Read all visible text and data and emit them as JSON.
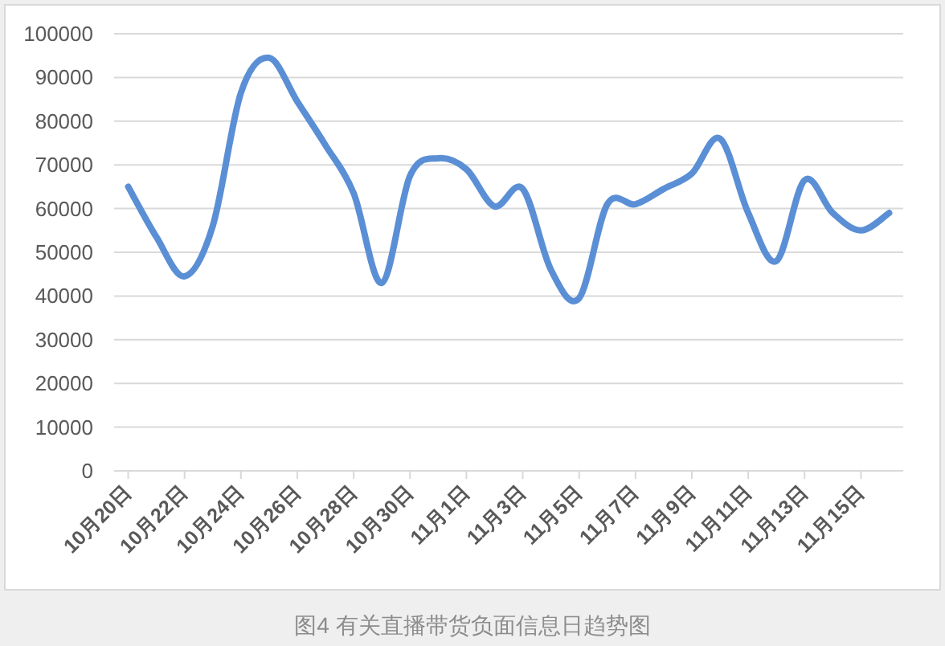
{
  "chart_data": {
    "type": "line",
    "categories": [
      "10月20日",
      null,
      "10月22日",
      null,
      "10月24日",
      null,
      "10月26日",
      null,
      "10月28日",
      null,
      "10月30日",
      null,
      "11月1日",
      null,
      "11月3日",
      null,
      "11月5日",
      null,
      "11月7日",
      null,
      "11月9日",
      null,
      "11月11日",
      null,
      "11月13日",
      null,
      "11月15日",
      null
    ],
    "series": [
      {
        "color": "#5b8fd5",
        "values": [
          65000,
          53500,
          44500,
          56000,
          86500,
          94500,
          84500,
          74500,
          63500,
          43000,
          67500,
          71500,
          69000,
          60500,
          64500,
          46000,
          39500,
          61000,
          61000,
          64500,
          68000,
          76000,
          59000,
          48000,
          66500,
          59000,
          55000,
          59000
        ]
      }
    ],
    "ylim": [
      0,
      100000
    ],
    "yticks": [
      0,
      10000,
      20000,
      30000,
      40000,
      50000,
      60000,
      70000,
      80000,
      90000,
      100000
    ],
    "grid": "y",
    "legend": false,
    "marker": "none",
    "line_style": "solid",
    "annotations": [
      "图4 有关直播带货负面信息日趋势图"
    ]
  }
}
